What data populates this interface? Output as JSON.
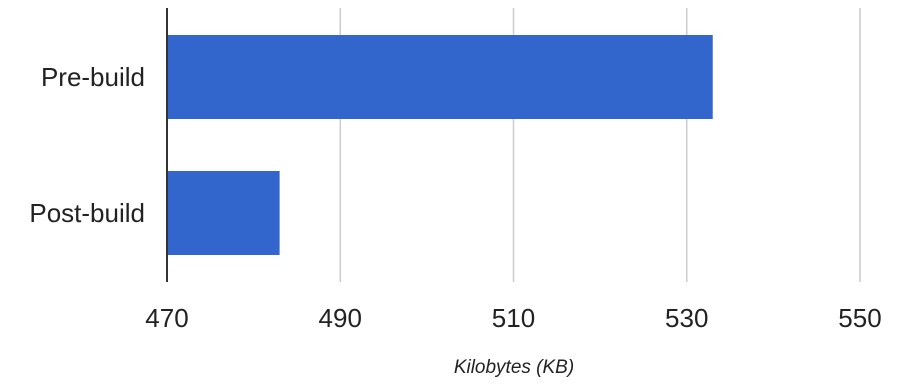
{
  "chart_data": {
    "type": "bar",
    "orientation": "horizontal",
    "title": "",
    "xlabel": "Kilobytes (KB)",
    "ylabel": "",
    "categories": [
      "Pre-build",
      "Post-build"
    ],
    "values": [
      533,
      483
    ],
    "xlim": [
      470,
      550
    ],
    "x_ticks": [
      470,
      490,
      510,
      530,
      550
    ],
    "x_tick_labels": [
      "470",
      "490",
      "510",
      "530",
      "550"
    ],
    "grid": true,
    "legend": "none"
  },
  "colors": {
    "bar": "#3366cc",
    "gridline": "#cccccc",
    "baseline": "#333333",
    "text": "#222222"
  }
}
